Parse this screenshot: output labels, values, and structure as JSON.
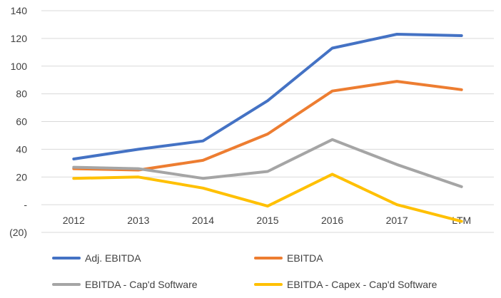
{
  "chart_data": {
    "type": "line",
    "title": "",
    "xlabel": "",
    "ylabel": "",
    "categories": [
      "2012",
      "2013",
      "2014",
      "2015",
      "2016",
      "2017",
      "LTM"
    ],
    "ylim": [
      -20,
      140
    ],
    "y_ticks": [
      140,
      120,
      100,
      80,
      60,
      40,
      20,
      0,
      -20
    ],
    "y_tick_labels": [
      "140",
      "120",
      "100",
      "80",
      "60",
      "40",
      "20",
      "-",
      "(20)"
    ],
    "grid": true,
    "legend_position": "bottom",
    "series": [
      {
        "name": "Adj. EBITDA",
        "color": "#4472C4",
        "values": [
          33,
          40,
          46,
          75,
          113,
          123,
          122
        ]
      },
      {
        "name": "EBITDA",
        "color": "#ED7D31",
        "values": [
          26,
          25,
          32,
          51,
          82,
          89,
          83
        ]
      },
      {
        "name": "EBITDA - Cap'd Software",
        "color": "#A5A5A5",
        "values": [
          27,
          26,
          19,
          24,
          47,
          29,
          13
        ]
      },
      {
        "name": "EBITDA - Capex - Cap'd Software",
        "color": "#FFC000",
        "values": [
          19,
          20,
          12,
          -1,
          22,
          0,
          -12
        ]
      }
    ]
  }
}
